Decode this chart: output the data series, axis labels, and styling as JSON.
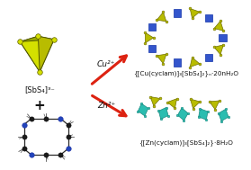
{
  "bg_color": "#ffffff",
  "tetra_color_yg": "#b8bc00",
  "tetra_edge_yg": "#707000",
  "cu_color": "#3355cc",
  "cu_edge": "#1133aa",
  "zn_color": "#2abdb0",
  "zn_edge": "#1a8a80",
  "arrow_color": "#dd2211",
  "text_color": "#111111",
  "title_cu": "{[Cu(cyclam)]₃[SbS₄]₂}ₙ·20nH₂O",
  "title_zn": "{[Zn(cyclam)]₃[SbS₄]₂}·8H₂O",
  "label_sbs4": "[SbS₄]³⁻",
  "label_plus": "+",
  "label_cu": "Cu²⁺",
  "label_zn": "Zn²⁺",
  "font_formula": 5.2,
  "font_label": 6.0,
  "font_arrow": 6.5,
  "font_plus": 11
}
